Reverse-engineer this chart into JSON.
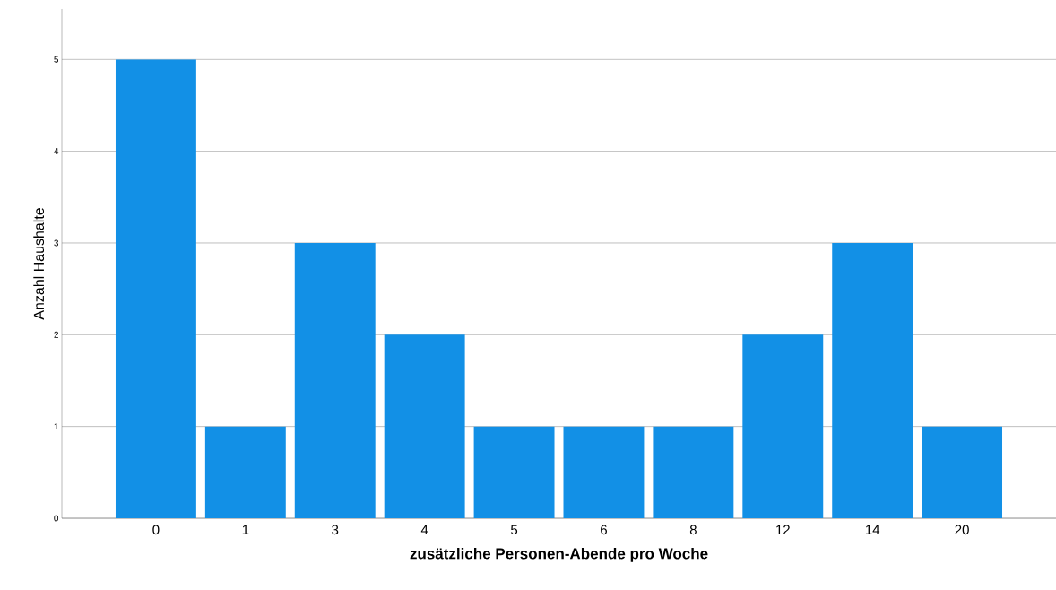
{
  "chart_data": {
    "type": "bar",
    "xlabel": "zusätzliche Personen-Abende pro Woche",
    "ylabel": "Anzahl Haushalte",
    "categories": [
      "0",
      "1",
      "3",
      "4",
      "5",
      "6",
      "8",
      "12",
      "14",
      "20"
    ],
    "values": [
      5,
      1,
      3,
      2,
      1,
      1,
      1,
      2,
      3,
      1
    ],
    "color": "#1290e6",
    "ylim": [
      0,
      5.55
    ],
    "yticks": [
      0,
      1,
      2,
      3,
      4,
      5
    ],
    "grid": "y"
  }
}
